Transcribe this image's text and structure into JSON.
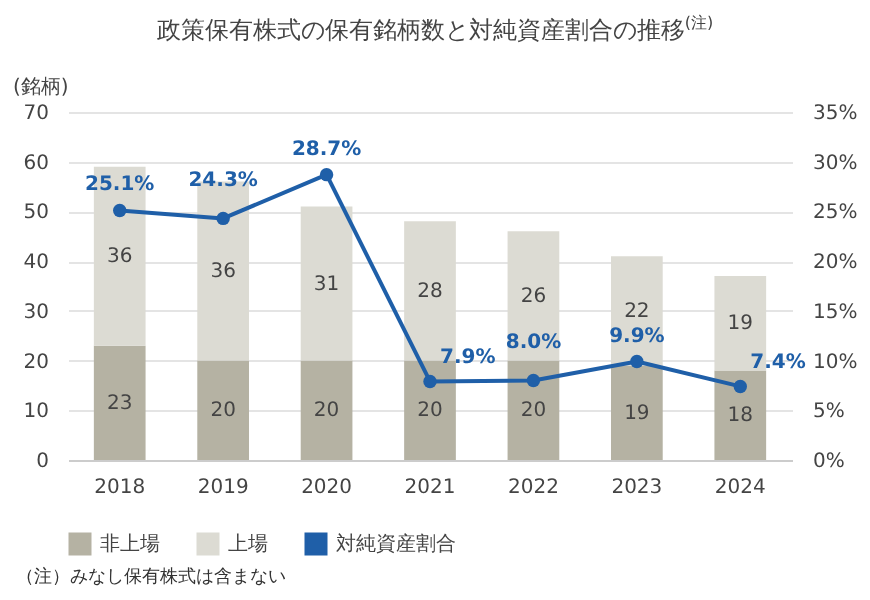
{
  "chart_data": {
    "type": "bar",
    "title": "政策保有株式の保有銘柄数と対純資産割合の推移$^{(注)}$",
    "ylabel": "(銘柄)",
    "categories": [
      "2018",
      "2019",
      "2020",
      "2021",
      "2022",
      "2023",
      "2024"
    ],
    "stacked": true,
    "ylim": [
      0,
      70
    ],
    "yticks": [
      0,
      10,
      20,
      30,
      40,
      50,
      60,
      70
    ],
    "y2lim": [
      0,
      35
    ],
    "y2ticks": [
      {
        "value": 0,
        "label": "0%"
      },
      {
        "value": 5,
        "label": "5%"
      },
      {
        "value": 10,
        "label": "10%"
      },
      {
        "value": 15,
        "label": "15%"
      },
      {
        "value": 20,
        "label": "20%"
      },
      {
        "value": 25,
        "label": "25%"
      },
      {
        "value": 30,
        "label": "30%"
      },
      {
        "value": 35,
        "label": "35%"
      }
    ],
    "grid": "y",
    "legend": "bottom",
    "marker": "circle",
    "annotations": [
      "（注）みなし保有株式は含まない"
    ],
    "series": [
      {
        "name": "非上場",
        "color": "#b5b2a3",
        "values": [
          23,
          20,
          20,
          20,
          20,
          19,
          18
        ],
        "value_labels": [
          "23",
          "20",
          "20",
          "20",
          "20",
          "19",
          "18"
        ]
      },
      {
        "name": "上場",
        "color": "#dcdbd3",
        "values": [
          36,
          36,
          31,
          28,
          26,
          22,
          19
        ],
        "value_labels": [
          "36",
          "36",
          "31",
          "28",
          "26",
          "22",
          "19"
        ]
      },
      {
        "name": "対純資産割合",
        "type": "line",
        "axis": "y2",
        "color": "#1f5fa8",
        "values": [
          25.1,
          24.3,
          28.7,
          7.9,
          8.0,
          9.9,
          7.4
        ],
        "value_labels": [
          "25.1%",
          "24.3%",
          "28.7%",
          "7.9%",
          "8.0%",
          "9.9%",
          "7.4%"
        ]
      }
    ]
  }
}
